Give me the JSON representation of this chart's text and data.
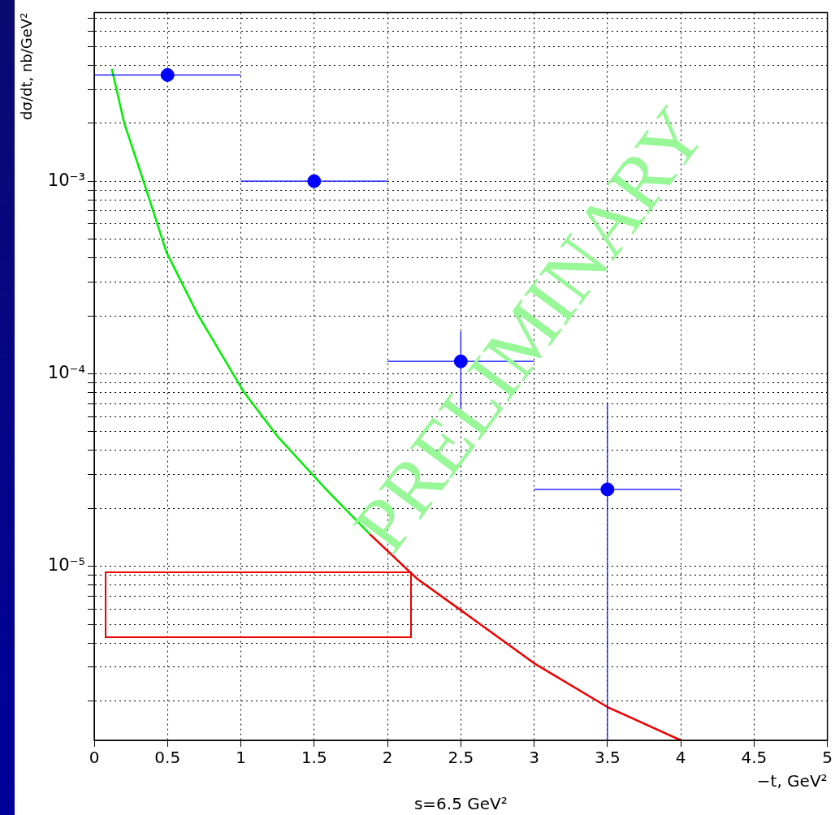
{
  "chart_data": {
    "type": "scatter",
    "xlabel": "−t, GeV²",
    "ylabel": "dσ/dt, nb/GeV²",
    "annotations": [
      "PRELIMINARY",
      "s=6.5 GeV²"
    ],
    "log": "y",
    "grid": true,
    "legend": false,
    "xlim": [
      0,
      5
    ],
    "xticks": [
      0,
      0.5,
      1,
      1.5,
      2,
      2.5,
      3,
      3.5,
      4,
      4.5,
      5
    ],
    "ylim": [
      1.25e-06,
      0.0075
    ],
    "yticks": [
      {
        "value": 2e-06,
        "label": null
      },
      {
        "value": 3e-06,
        "label": null
      },
      {
        "value": 4e-06,
        "label": null
      },
      {
        "value": 5e-06,
        "label": null
      },
      {
        "value": 6e-06,
        "label": null
      },
      {
        "value": 7e-06,
        "label": null
      },
      {
        "value": 8e-06,
        "label": null
      },
      {
        "value": 9e-06,
        "label": null
      },
      {
        "value": 1e-05,
        "label": "10⁻⁵"
      },
      {
        "value": 2e-05,
        "label": null
      },
      {
        "value": 3e-05,
        "label": null
      },
      {
        "value": 4e-05,
        "label": null
      },
      {
        "value": 5e-05,
        "label": null
      },
      {
        "value": 6e-05,
        "label": null
      },
      {
        "value": 7e-05,
        "label": null
      },
      {
        "value": 8e-05,
        "label": null
      },
      {
        "value": 9e-05,
        "label": null
      },
      {
        "value": 0.0001,
        "label": "10⁻⁴"
      },
      {
        "value": 0.0002,
        "label": null
      },
      {
        "value": 0.0003,
        "label": null
      },
      {
        "value": 0.0004,
        "label": null
      },
      {
        "value": 0.0005,
        "label": null
      },
      {
        "value": 0.0006,
        "label": null
      },
      {
        "value": 0.0007,
        "label": null
      },
      {
        "value": 0.0008,
        "label": null
      },
      {
        "value": 0.0009,
        "label": null
      },
      {
        "value": 0.001,
        "label": "10⁻³"
      },
      {
        "value": 0.002,
        "label": null
      },
      {
        "value": 0.003,
        "label": null
      },
      {
        "value": 0.004,
        "label": null
      },
      {
        "value": 0.005,
        "label": null
      },
      {
        "value": 0.006,
        "label": null
      },
      {
        "value": 0.007,
        "label": null
      }
    ],
    "series": [
      {
        "color": "#0000ff",
        "marker": "circle",
        "x": [
          0.5,
          1.5,
          2.5,
          3.5
        ],
        "values": [
          0.00356,
          0.001,
          0.000116,
          2.51e-05
        ],
        "errors": [
          null,
          null,
          [
            6.55e-05,
            0.000166
          ],
          [
            1.25e-06,
            7.05e-05
          ]
        ],
        "xerrors": [
          0.5,
          0.5,
          0.5,
          0.5
        ]
      },
      {
        "type": "line",
        "color": "#00ee00",
        "marker": "none",
        "x": [
          0.12,
          0.205,
          0.338,
          0.493,
          0.703,
          1.02,
          1.25,
          1.573,
          1.88
        ],
        "values": [
          0.00383,
          0.002,
          0.00099,
          0.000427,
          0.000205,
          8.05e-05,
          4.73e-05,
          2.55e-05,
          1.47e-05
        ]
      },
      {
        "type": "line",
        "color": "#ee0000",
        "marker": "none",
        "x": [
          1.88,
          2.2,
          2.49,
          3.0,
          3.5,
          4.0
        ],
        "values": [
          1.47e-05,
          8.65e-06,
          6e-06,
          3.14e-06,
          1.86e-06,
          1.25e-06
        ]
      }
    ]
  }
}
